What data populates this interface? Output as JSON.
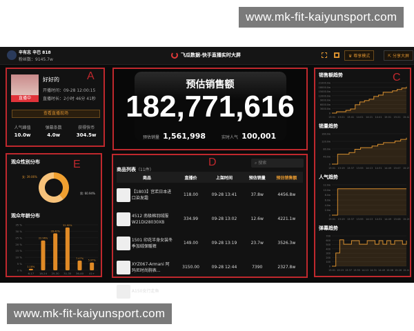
{
  "watermark": "www.mk-fit-kaiyunsport.com",
  "header": {
    "streamer": "辛有志 辛巴 818",
    "fans": "粉丝数：9145.7w",
    "title": "飞瓜数据-快手直播实时大屏",
    "buttons": [
      "尊享模式",
      "分享大屏"
    ],
    "icons": [
      "fullscreen-icon",
      "qrcode-icon",
      "crown-icon",
      "share-icon"
    ]
  },
  "panelA": {
    "letter": "A",
    "name": "好好的",
    "live_badge": "直播中",
    "start": "开播时间：09-28 12:00:15",
    "duration": "直播时长：2小时 46分 41秒",
    "view_button": "查看直播现场",
    "stats": [
      {
        "label": "人气峰值",
        "value": "10.0w"
      },
      {
        "label": "弹幕条数",
        "value": "4.0w"
      },
      {
        "label": "获得快币",
        "value": "304.5w"
      }
    ]
  },
  "panelB": {
    "letter": "B",
    "title": "预估销售额",
    "amount": "182,771,616",
    "sales_label": "预估销量",
    "sales": "1,561,998",
    "pop_label": "实时人气",
    "pop": "100,001"
  },
  "panelC": {
    "letter": "C",
    "charts": [
      {
        "title": "销售额趋势",
        "yticks": [
          "0",
          "3000.0w",
          "6000.0w",
          "9000.0w",
          "12000.0w",
          "15000.0w",
          "18000.0w",
          "21000.0w"
        ],
        "xticks": [
          "13:01",
          "13:21",
          "13:41",
          "14:01",
          "14:21",
          "14:41",
          "15:01",
          "15:21",
          "15:42"
        ],
        "values": [
          0,
          1,
          1,
          2,
          3,
          6,
          8,
          9,
          10,
          12,
          13,
          15,
          15,
          16,
          17,
          18,
          19
        ]
      },
      {
        "title": "销量趋势",
        "yticks": [
          "0",
          "40.0w",
          "80.0w",
          "120.0w",
          "160.0w"
        ],
        "xticks": [
          "13:01",
          "13:19",
          "13:37",
          "13:55",
          "14:13",
          "14:31",
          "14:49",
          "15:07",
          "15:25"
        ],
        "values": [
          0,
          6,
          6,
          7,
          9,
          10,
          10,
          11,
          12,
          13,
          13,
          14,
          15,
          16
        ]
      },
      {
        "title": "人气趋势",
        "yticks": [
          "0",
          "2.0w",
          "4.0w",
          "6.0w",
          "8.0w",
          "10.0w",
          "12.0w"
        ],
        "xticks": [
          "13:01",
          "13:19",
          "13:37",
          "13:55",
          "14:13",
          "14:31",
          "14:49",
          "15:08",
          "15:26"
        ],
        "values": [
          0,
          10,
          10,
          10,
          10,
          10,
          10,
          10,
          10,
          10,
          10,
          10,
          10,
          10
        ]
      },
      {
        "title": "弹幕趋势",
        "yticks": [
          "0",
          "100",
          "200",
          "300",
          "400",
          "500",
          "600",
          "700"
        ],
        "xticks": [
          "13:01",
          "13:19",
          "13:37",
          "13:55",
          "14:13",
          "14:31",
          "14:49",
          "15:08",
          "15:26",
          "15:44"
        ],
        "values": [
          0,
          300,
          600,
          500,
          500,
          580,
          580,
          500,
          500,
          580,
          580,
          500,
          580,
          500,
          580,
          500,
          580,
          580,
          500,
          580
        ]
      }
    ]
  },
  "panelD": {
    "letter": "D",
    "title": "商品列表",
    "count": "（11件）",
    "search_placeholder": "搜索",
    "columns": [
      "商品",
      "直播价",
      "上架时间",
      "预估销量",
      "预估销售额"
    ],
    "rows": [
      {
        "name": "【1803】宫若日本进口染发霜",
        "price": "118.00",
        "time": "09-28 13:41",
        "sales": "37.8w",
        "revenue": "4456.8w"
      },
      {
        "name": "4512 南极棉羽绒服W21DI28030XB",
        "price": "334.99",
        "time": "09-28 13:02",
        "sales": "12.6w",
        "revenue": "4221.1w"
      },
      {
        "name": "1501 印花半身女装冬季加绒保暖裤",
        "price": "149.00",
        "time": "09-28 13:19",
        "sales": "23.7w",
        "revenue": "3526.3w"
      },
      {
        "name": "XYZ067-Armani 阿玛尼时尚腕表...",
        "price": "3150.00",
        "time": "09-28 12:44",
        "sales": "7390",
        "revenue": "2327.8w"
      },
      {
        "name": "A150女行走鱼",
        "price": "",
        "time": "",
        "sales": "",
        "revenue": ""
      }
    ]
  },
  "panelE": {
    "letter": "E",
    "gender_title": "观众性别分布",
    "gender": [
      {
        "label": "女: 39.06%",
        "value": 39.06,
        "color": "#f0a030"
      },
      {
        "label": "男: 60.94%",
        "value": 60.94,
        "color": "#f7c27a"
      }
    ],
    "age_title": "观众年龄分布",
    "chart_data": {
      "type": "bar",
      "categories": [
        "6-17",
        "18-24",
        "25-30",
        "31-35",
        "36-40",
        "41+"
      ],
      "values": [
        1.18,
        22.96,
        28.42,
        32.92,
        7.47,
        5.97
      ],
      "labels": [
        "1.18%",
        "22.96%",
        "28.42%",
        "32.92%",
        "7.47%",
        "5.97%"
      ],
      "ylim": [
        0,
        35
      ],
      "yticks": [
        "0 %",
        "5 %",
        "10 %",
        "15 %",
        "20 %",
        "25 %",
        "30 %",
        "35 %"
      ]
    }
  }
}
